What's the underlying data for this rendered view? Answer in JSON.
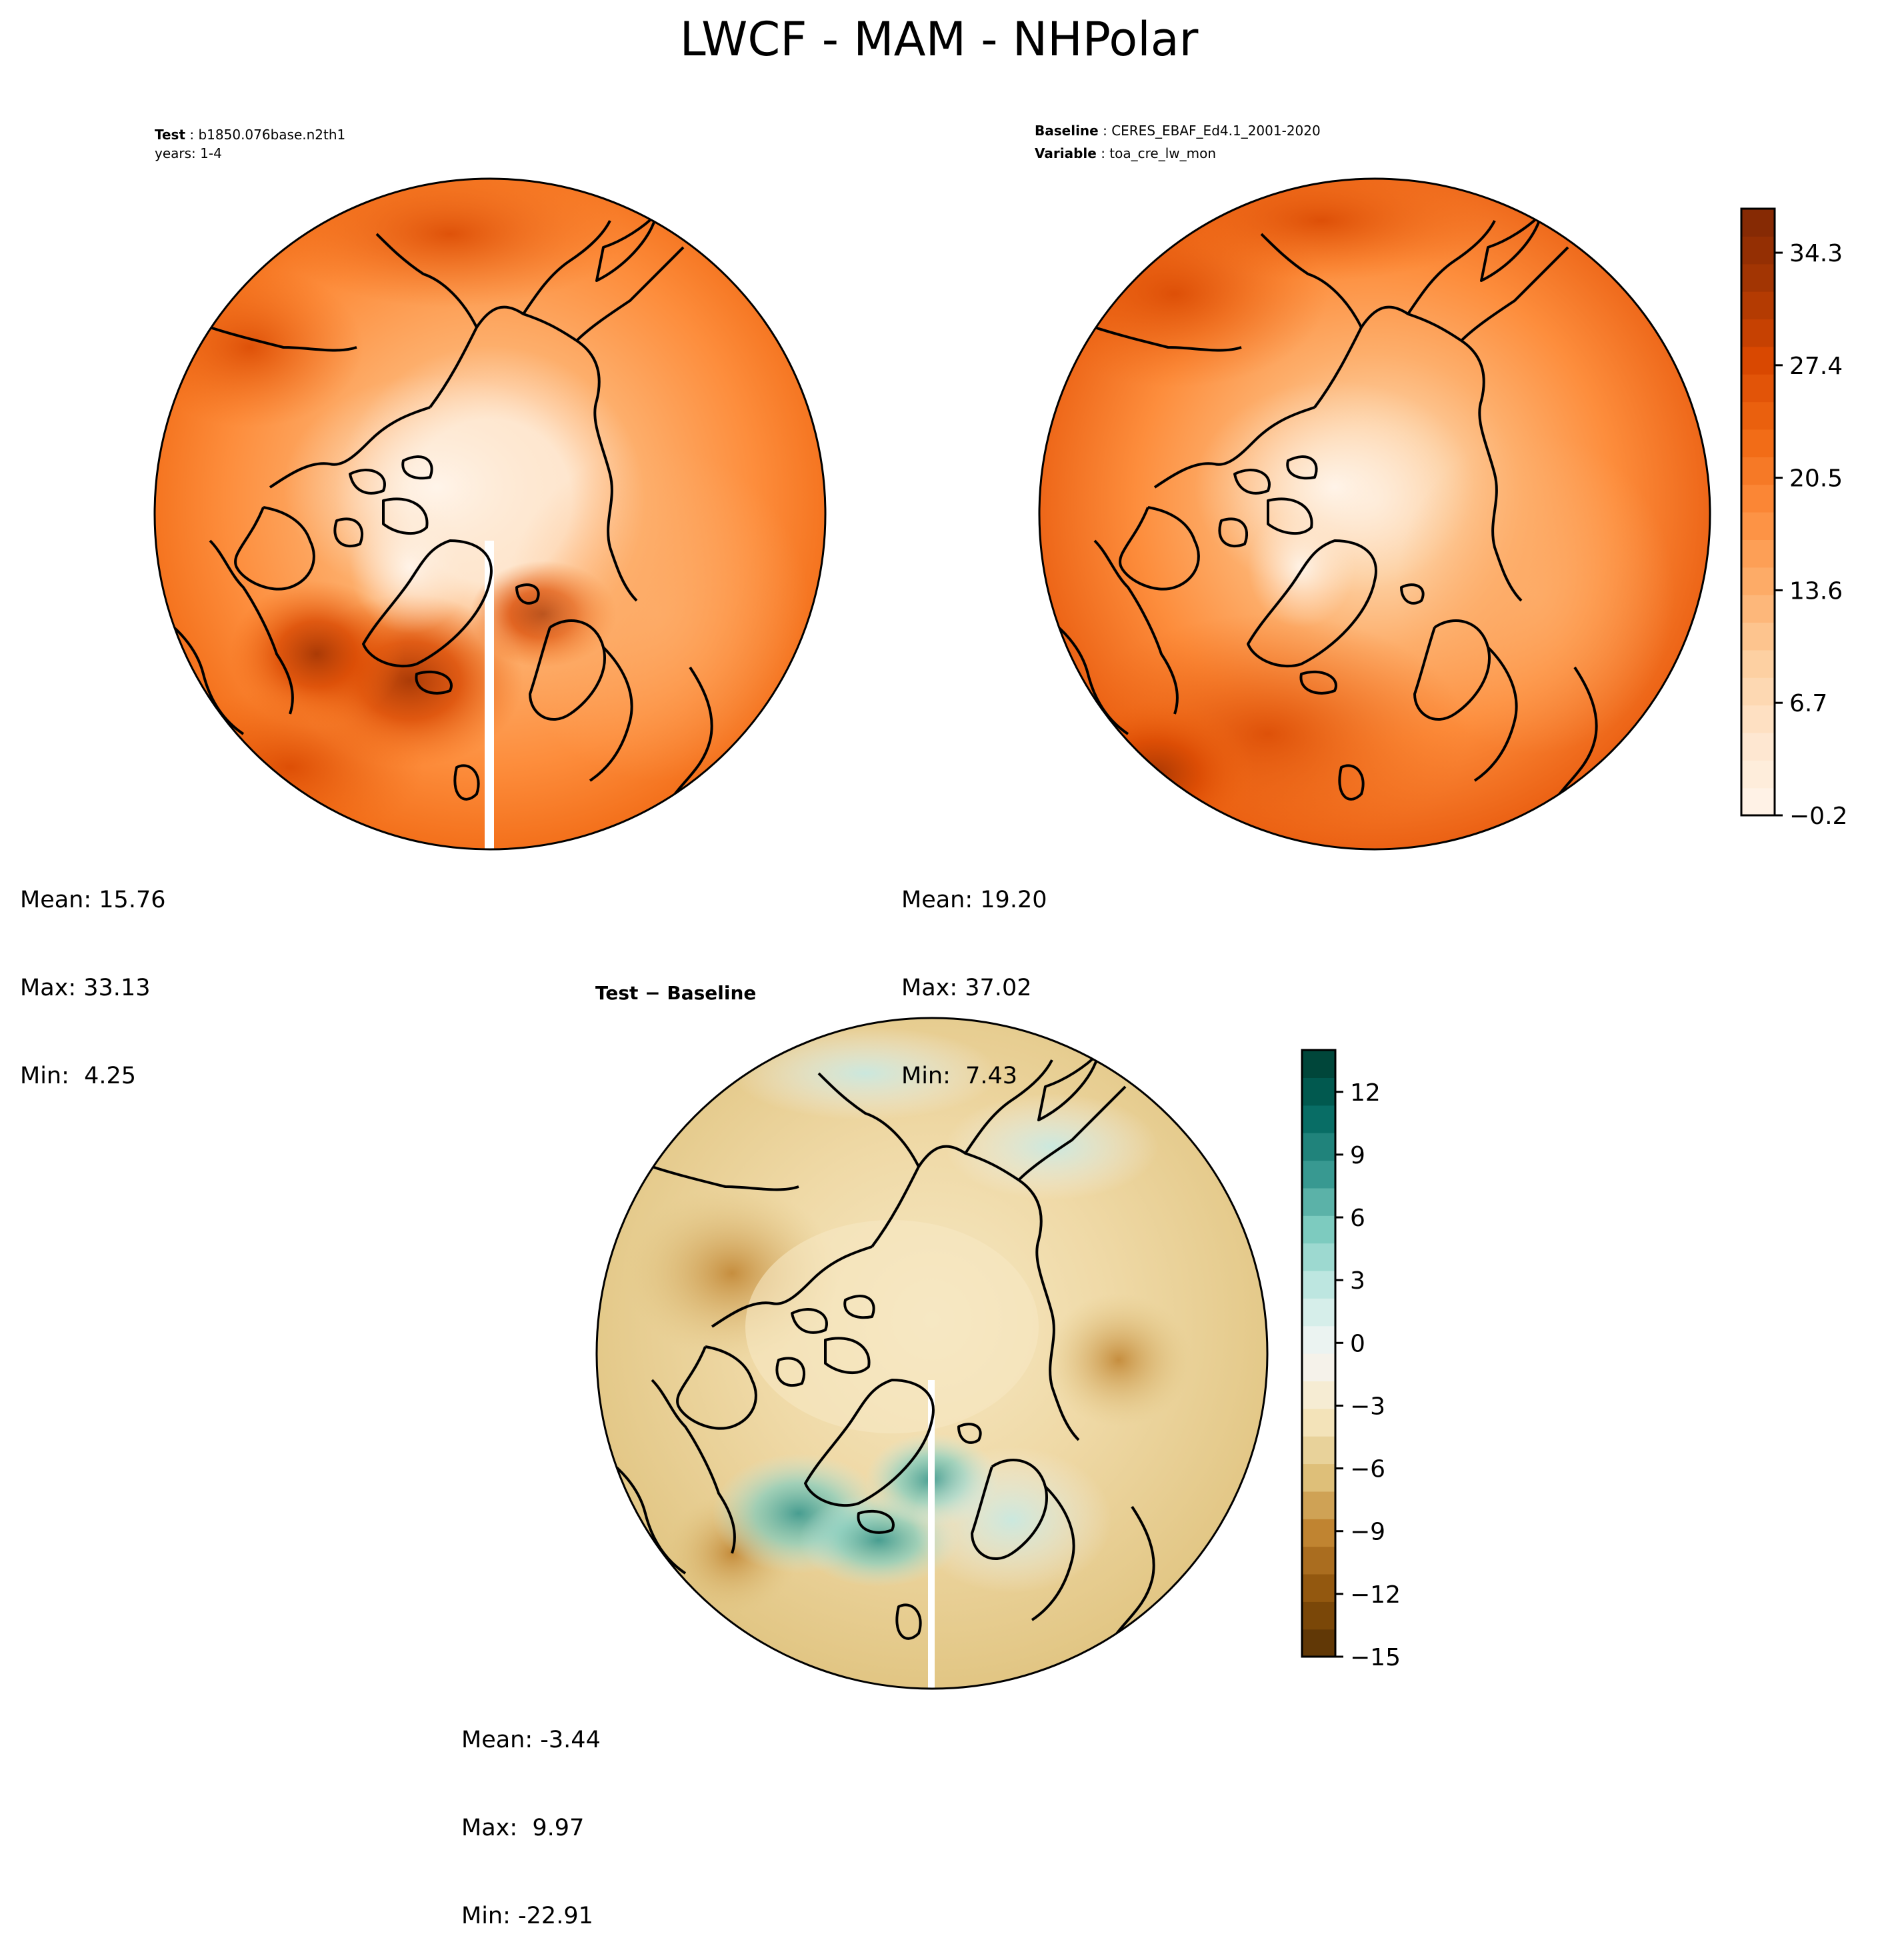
{
  "figure": {
    "title": "LWCF - MAM - NHPolar"
  },
  "panels": {
    "test": {
      "header": {
        "label": "Test",
        "value": "b1850.076base.n2th1",
        "line2": "years: 1-4"
      },
      "stats": {
        "mean": "Mean: 15.76",
        "max": "Max: 33.13",
        "min": "Min:  4.25"
      }
    },
    "baseline": {
      "header": {
        "label": "Baseline",
        "value": "CERES_EBAF_Ed4.1_2001-2020",
        "label2": "Variable",
        "value2": "toa_cre_lw_mon"
      },
      "stats": {
        "mean": "Mean: 19.20",
        "max": "Max: 37.02",
        "min": "Min:  7.43"
      }
    },
    "diff": {
      "title": "Test − Baseline",
      "stats": {
        "mean": "Mean: -3.44",
        "max": "Max:  9.97",
        "min": "Min: -22.91"
      }
    }
  },
  "colorbars": {
    "main": {
      "colormap": "Oranges",
      "ticks": [
        "34.3",
        "27.4",
        "20.5",
        "13.6",
        "6.7",
        "−0.2"
      ],
      "colors": [
        "#fff5eb",
        "#fee6ce",
        "#fdd0a2",
        "#fdae6b",
        "#fd8d3c",
        "#f16913",
        "#d94801",
        "#a63603",
        "#7f2704"
      ]
    },
    "diff": {
      "colormap": "BrBG",
      "ticks": [
        "12",
        "9",
        "6",
        "3",
        "0",
        "−3",
        "−6",
        "−9",
        "−12",
        "−15"
      ],
      "colors": [
        "#543005",
        "#8c510a",
        "#bf812d",
        "#dfc27d",
        "#f6e8c3",
        "#f5f5f5",
        "#c7eae5",
        "#80cdc1",
        "#35978f",
        "#01665e",
        "#003c30"
      ]
    }
  },
  "chart_data": [
    {
      "type": "heatmap",
      "subtype": "polar-stereographic-map",
      "title": "LWCF - MAM - NHPolar",
      "panel": "Test",
      "case": "b1850.076base.n2th1",
      "years": "1-4",
      "mean": 15.76,
      "max": 33.13,
      "min": 4.25,
      "colorbar_range": [
        -0.2,
        37.0
      ],
      "colorbar_ticks": [
        -0.2,
        6.7,
        13.6,
        20.5,
        27.4,
        34.3
      ]
    },
    {
      "type": "heatmap",
      "subtype": "polar-stereographic-map",
      "panel": "Baseline",
      "case": "CERES_EBAF_Ed4.1_2001-2020",
      "variable": "toa_cre_lw_mon",
      "mean": 19.2,
      "max": 37.02,
      "min": 7.43,
      "colorbar_range": [
        -0.2,
        37.0
      ],
      "colorbar_ticks": [
        -0.2,
        6.7,
        13.6,
        20.5,
        27.4,
        34.3
      ]
    },
    {
      "type": "heatmap",
      "subtype": "polar-stereographic-map",
      "panel": "Test − Baseline",
      "mean": -3.44,
      "max": 9.97,
      "min": -22.91,
      "colorbar_range": [
        -15,
        14
      ],
      "colorbar_ticks": [
        -15,
        -12,
        -9,
        -6,
        -3,
        0,
        3,
        6,
        9,
        12
      ]
    }
  ]
}
